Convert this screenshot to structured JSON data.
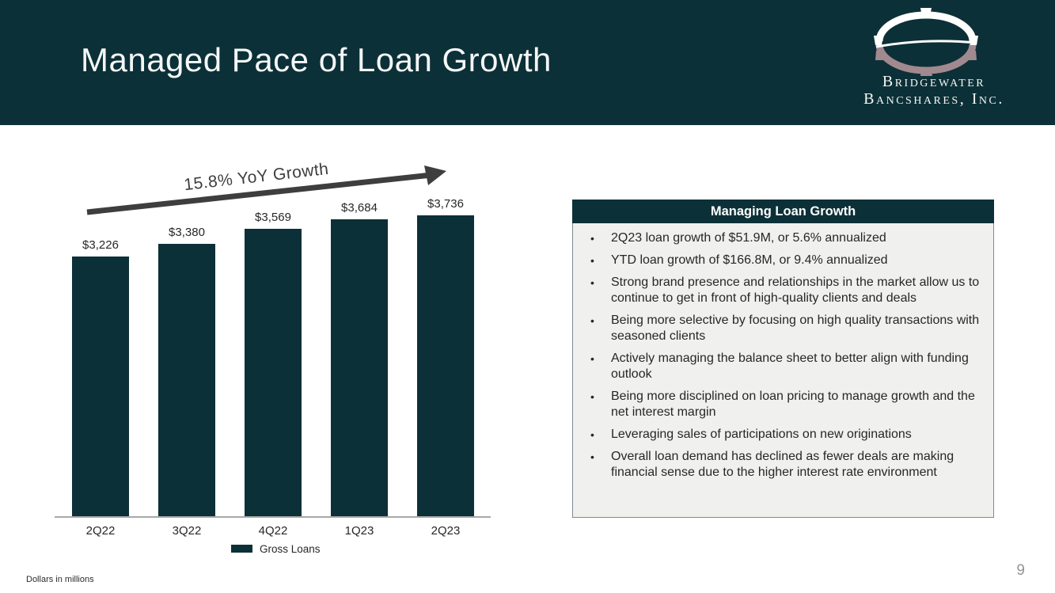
{
  "slide": {
    "title": "Managed Pace of Loan Growth",
    "footnote": "Dollars in millions",
    "page_number": "9"
  },
  "logo": {
    "name_line1": "Bridgewater",
    "name_line2": "Bancshares, Inc.",
    "bridge_top_color": "#ffffff",
    "bridge_reflection_color": "#a18990"
  },
  "chart_data": {
    "type": "bar",
    "title": "",
    "categories": [
      "2Q22",
      "3Q22",
      "4Q22",
      "1Q23",
      "2Q23"
    ],
    "series": [
      {
        "name": "Gross Loans",
        "values": [
          3226,
          3380,
          3569,
          3684,
          3736
        ]
      }
    ],
    "value_labels": [
      "$3,226",
      "$3,380",
      "$3,569",
      "$3,684",
      "$3,736"
    ],
    "annotation": "15.8% YoY Growth",
    "units": "Dollars in millions",
    "ylim": [
      0,
      3736
    ],
    "grid": false,
    "legend_position": "bottom",
    "bar_color": "#0c3037",
    "axis_color": "#a8a8a8"
  },
  "info_box": {
    "title": "Managing Loan Growth",
    "bullets": [
      "2Q23 loan growth of $51.9M, or 5.6% annualized",
      "YTD loan growth of $166.8M, or 9.4% annualized",
      "Strong brand presence and relationships in the market allow us to continue to get in front of high-quality clients and deals",
      "Being more selective by focusing on high quality transactions with seasoned clients",
      "Actively managing the balance sheet to better align with funding outlook",
      "Being more disciplined on loan pricing to manage growth and the net interest margin",
      "Leveraging sales of participations on new originations",
      "Overall loan demand has declined as fewer deals are making financial sense due to the higher interest rate environment"
    ]
  },
  "colors": {
    "header_bg": "#0c3037",
    "bar": "#0c3037",
    "box_body": "#f0f0ee",
    "box_border": "#7e8a8f",
    "arrow": "#3e3e3e",
    "text": "#272727",
    "page_number": "#949494"
  }
}
